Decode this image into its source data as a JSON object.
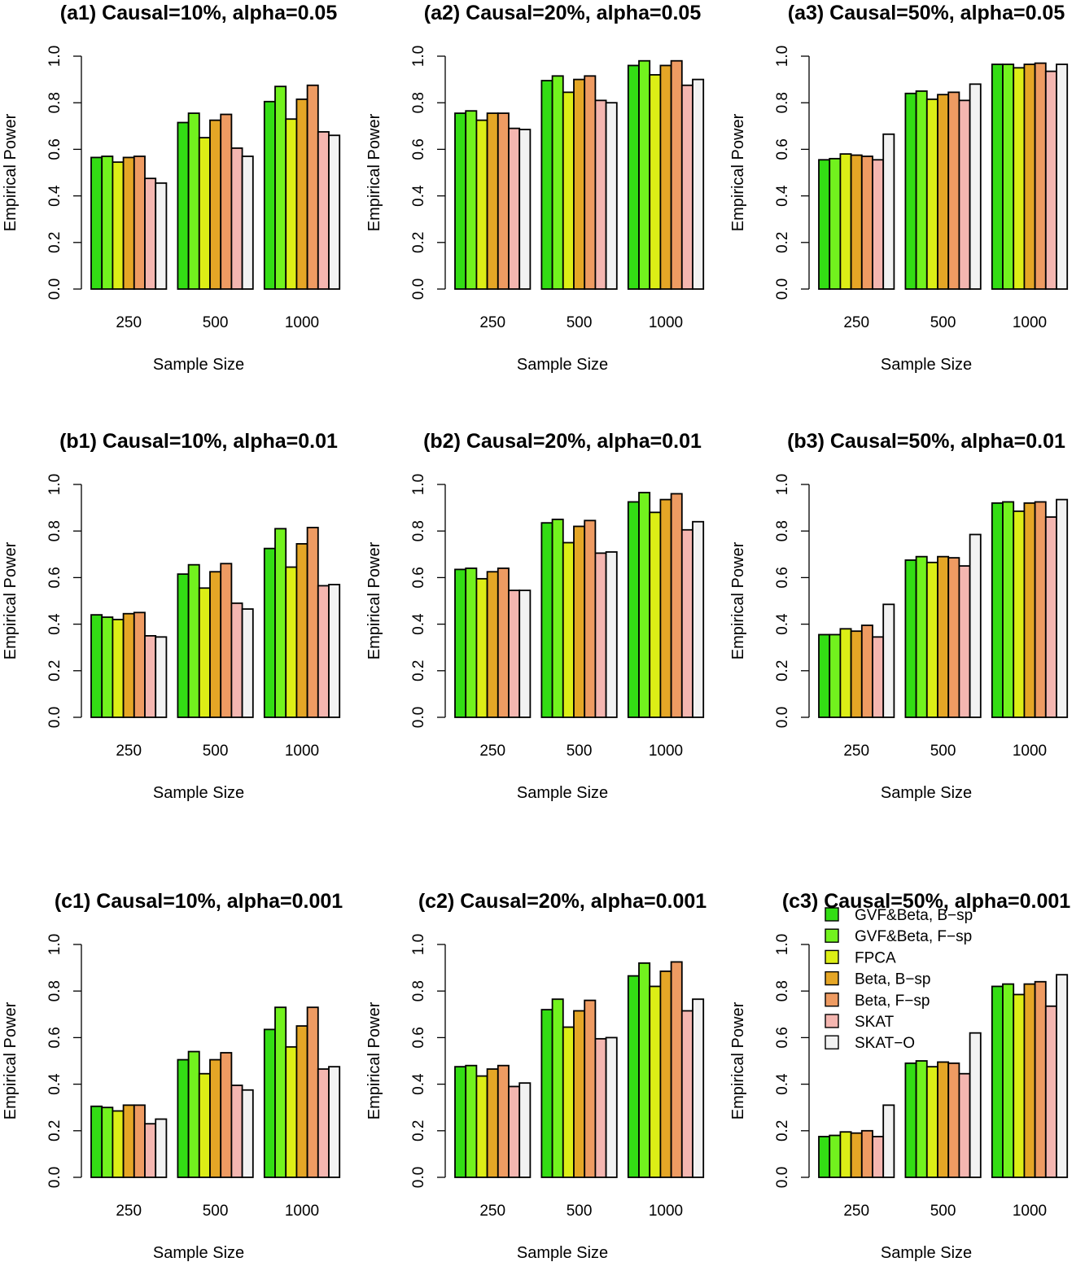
{
  "figure": {
    "ylabel": "Empirical Power",
    "xlabel": "Sample Size",
    "y_ticks": [
      "0.0",
      "0.2",
      "0.4",
      "0.6",
      "0.8",
      "1.0"
    ]
  },
  "legend": {
    "items": [
      {
        "label": "GVF&Beta, B−sp",
        "color": "#33dd14"
      },
      {
        "label": "GVF&Beta, F−sp",
        "color": "#72f21e"
      },
      {
        "label": "FPCA",
        "color": "#dcee16"
      },
      {
        "label": "Beta, B−sp",
        "color": "#e5a626"
      },
      {
        "label": "Beta, F−sp",
        "color": "#ee9b62"
      },
      {
        "label": "SKAT",
        "color": "#f4b6b0"
      },
      {
        "label": "SKAT−O",
        "color": "#f2f2f2"
      }
    ]
  },
  "chart_data": [
    {
      "type": "bar",
      "title": "(a1) Causal=10%, alpha=0.05",
      "xlabel": "Sample Size",
      "ylabel": "Empirical Power",
      "ylim": [
        0,
        1
      ],
      "categories": [
        "250",
        "500",
        "1000"
      ],
      "series": [
        {
          "name": "GVF&Beta, B−sp",
          "values": [
            0.565,
            0.715,
            0.805
          ]
        },
        {
          "name": "GVF&Beta, F−sp",
          "values": [
            0.57,
            0.755,
            0.87
          ]
        },
        {
          "name": "FPCA",
          "values": [
            0.545,
            0.65,
            0.73
          ]
        },
        {
          "name": "Beta, B−sp",
          "values": [
            0.565,
            0.725,
            0.815
          ]
        },
        {
          "name": "Beta, F−sp",
          "values": [
            0.57,
            0.75,
            0.875
          ]
        },
        {
          "name": "SKAT",
          "values": [
            0.475,
            0.605,
            0.675
          ]
        },
        {
          "name": "SKAT−O",
          "values": [
            0.455,
            0.57,
            0.66
          ]
        }
      ]
    },
    {
      "type": "bar",
      "title": "(a2) Causal=20%, alpha=0.05",
      "xlabel": "Sample Size",
      "ylabel": "Empirical Power",
      "ylim": [
        0,
        1
      ],
      "categories": [
        "250",
        "500",
        "1000"
      ],
      "series": [
        {
          "name": "GVF&Beta, B−sp",
          "values": [
            0.755,
            0.895,
            0.96
          ]
        },
        {
          "name": "GVF&Beta, F−sp",
          "values": [
            0.765,
            0.915,
            0.98
          ]
        },
        {
          "name": "FPCA",
          "values": [
            0.725,
            0.845,
            0.92
          ]
        },
        {
          "name": "Beta, B−sp",
          "values": [
            0.755,
            0.9,
            0.96
          ]
        },
        {
          "name": "Beta, F−sp",
          "values": [
            0.755,
            0.915,
            0.98
          ]
        },
        {
          "name": "SKAT",
          "values": [
            0.69,
            0.81,
            0.875
          ]
        },
        {
          "name": "SKAT−O",
          "values": [
            0.685,
            0.8,
            0.9
          ]
        }
      ]
    },
    {
      "type": "bar",
      "title": "(a3) Causal=50%, alpha=0.05",
      "xlabel": "Sample Size",
      "ylabel": "Empirical Power",
      "ylim": [
        0,
        1
      ],
      "categories": [
        "250",
        "500",
        "1000"
      ],
      "series": [
        {
          "name": "GVF&Beta, B−sp",
          "values": [
            0.555,
            0.84,
            0.965
          ]
        },
        {
          "name": "GVF&Beta, F−sp",
          "values": [
            0.56,
            0.85,
            0.965
          ]
        },
        {
          "name": "FPCA",
          "values": [
            0.58,
            0.815,
            0.95
          ]
        },
        {
          "name": "Beta, B−sp",
          "values": [
            0.575,
            0.835,
            0.965
          ]
        },
        {
          "name": "Beta, F−sp",
          "values": [
            0.57,
            0.845,
            0.97
          ]
        },
        {
          "name": "SKAT",
          "values": [
            0.555,
            0.81,
            0.935
          ]
        },
        {
          "name": "SKAT−O",
          "values": [
            0.665,
            0.88,
            0.965
          ]
        }
      ]
    },
    {
      "type": "bar",
      "title": "(b1) Causal=10%, alpha=0.01",
      "xlabel": "Sample Size",
      "ylabel": "Empirical Power",
      "ylim": [
        0,
        1
      ],
      "categories": [
        "250",
        "500",
        "1000"
      ],
      "series": [
        {
          "name": "GVF&Beta, B−sp",
          "values": [
            0.44,
            0.615,
            0.725
          ]
        },
        {
          "name": "GVF&Beta, F−sp",
          "values": [
            0.43,
            0.655,
            0.81
          ]
        },
        {
          "name": "FPCA",
          "values": [
            0.42,
            0.555,
            0.645
          ]
        },
        {
          "name": "Beta, B−sp",
          "values": [
            0.445,
            0.625,
            0.745
          ]
        },
        {
          "name": "Beta, F−sp",
          "values": [
            0.45,
            0.66,
            0.815
          ]
        },
        {
          "name": "SKAT",
          "values": [
            0.35,
            0.49,
            0.565
          ]
        },
        {
          "name": "SKAT−O",
          "values": [
            0.345,
            0.465,
            0.57
          ]
        }
      ]
    },
    {
      "type": "bar",
      "title": "(b2) Causal=20%, alpha=0.01",
      "xlabel": "Sample Size",
      "ylabel": "Empirical Power",
      "ylim": [
        0,
        1
      ],
      "categories": [
        "250",
        "500",
        "1000"
      ],
      "series": [
        {
          "name": "GVF&Beta, B−sp",
          "values": [
            0.635,
            0.835,
            0.925
          ]
        },
        {
          "name": "GVF&Beta, F−sp",
          "values": [
            0.64,
            0.85,
            0.965
          ]
        },
        {
          "name": "FPCA",
          "values": [
            0.595,
            0.75,
            0.88
          ]
        },
        {
          "name": "Beta, B−sp",
          "values": [
            0.625,
            0.82,
            0.935
          ]
        },
        {
          "name": "Beta, F−sp",
          "values": [
            0.64,
            0.845,
            0.96
          ]
        },
        {
          "name": "SKAT",
          "values": [
            0.545,
            0.705,
            0.805
          ]
        },
        {
          "name": "SKAT−O",
          "values": [
            0.545,
            0.71,
            0.84
          ]
        }
      ]
    },
    {
      "type": "bar",
      "title": "(b3) Causal=50%, alpha=0.01",
      "xlabel": "Sample Size",
      "ylabel": "Empirical Power",
      "ylim": [
        0,
        1
      ],
      "categories": [
        "250",
        "500",
        "1000"
      ],
      "series": [
        {
          "name": "GVF&Beta, B−sp",
          "values": [
            0.355,
            0.675,
            0.92
          ]
        },
        {
          "name": "GVF&Beta, F−sp",
          "values": [
            0.355,
            0.69,
            0.925
          ]
        },
        {
          "name": "FPCA",
          "values": [
            0.38,
            0.665,
            0.885
          ]
        },
        {
          "name": "Beta, B−sp",
          "values": [
            0.37,
            0.69,
            0.92
          ]
        },
        {
          "name": "Beta, F−sp",
          "values": [
            0.395,
            0.685,
            0.925
          ]
        },
        {
          "name": "SKAT",
          "values": [
            0.345,
            0.65,
            0.86
          ]
        },
        {
          "name": "SKAT−O",
          "values": [
            0.485,
            0.785,
            0.935
          ]
        }
      ]
    },
    {
      "type": "bar",
      "title": "(c1) Causal=10%, alpha=0.001",
      "xlabel": "Sample Size",
      "ylabel": "Empirical Power",
      "ylim": [
        0,
        1
      ],
      "categories": [
        "250",
        "500",
        "1000"
      ],
      "series": [
        {
          "name": "GVF&Beta, B−sp",
          "values": [
            0.305,
            0.505,
            0.635
          ]
        },
        {
          "name": "GVF&Beta, F−sp",
          "values": [
            0.3,
            0.54,
            0.73
          ]
        },
        {
          "name": "FPCA",
          "values": [
            0.285,
            0.445,
            0.56
          ]
        },
        {
          "name": "Beta, B−sp",
          "values": [
            0.31,
            0.505,
            0.65
          ]
        },
        {
          "name": "Beta, F−sp",
          "values": [
            0.31,
            0.535,
            0.73
          ]
        },
        {
          "name": "SKAT",
          "values": [
            0.23,
            0.395,
            0.465
          ]
        },
        {
          "name": "SKAT−O",
          "values": [
            0.25,
            0.375,
            0.475
          ]
        }
      ]
    },
    {
      "type": "bar",
      "title": "(c2) Causal=20%, alpha=0.001",
      "xlabel": "Sample Size",
      "ylabel": "Empirical Power",
      "ylim": [
        0,
        1
      ],
      "categories": [
        "250",
        "500",
        "1000"
      ],
      "series": [
        {
          "name": "GVF&Beta, B−sp",
          "values": [
            0.475,
            0.72,
            0.865
          ]
        },
        {
          "name": "GVF&Beta, F−sp",
          "values": [
            0.48,
            0.765,
            0.92
          ]
        },
        {
          "name": "FPCA",
          "values": [
            0.435,
            0.645,
            0.82
          ]
        },
        {
          "name": "Beta, B−sp",
          "values": [
            0.465,
            0.715,
            0.885
          ]
        },
        {
          "name": "Beta, F−sp",
          "values": [
            0.48,
            0.76,
            0.925
          ]
        },
        {
          "name": "SKAT",
          "values": [
            0.39,
            0.595,
            0.715
          ]
        },
        {
          "name": "SKAT−O",
          "values": [
            0.405,
            0.6,
            0.765
          ]
        }
      ]
    },
    {
      "type": "bar",
      "title": "(c3) Causal=50%, alpha=0.001",
      "xlabel": "Sample Size",
      "ylabel": "Empirical Power",
      "ylim": [
        0,
        1
      ],
      "categories": [
        "250",
        "500",
        "1000"
      ],
      "series": [
        {
          "name": "GVF&Beta, B−sp",
          "values": [
            0.175,
            0.49,
            0.82
          ]
        },
        {
          "name": "GVF&Beta, F−sp",
          "values": [
            0.18,
            0.5,
            0.83
          ]
        },
        {
          "name": "FPCA",
          "values": [
            0.195,
            0.475,
            0.785
          ]
        },
        {
          "name": "Beta, B−sp",
          "values": [
            0.19,
            0.495,
            0.83
          ]
        },
        {
          "name": "Beta, F−sp",
          "values": [
            0.2,
            0.49,
            0.84
          ]
        },
        {
          "name": "SKAT",
          "values": [
            0.175,
            0.445,
            0.735
          ]
        },
        {
          "name": "SKAT−O",
          "values": [
            0.31,
            0.62,
            0.87
          ]
        }
      ]
    }
  ]
}
